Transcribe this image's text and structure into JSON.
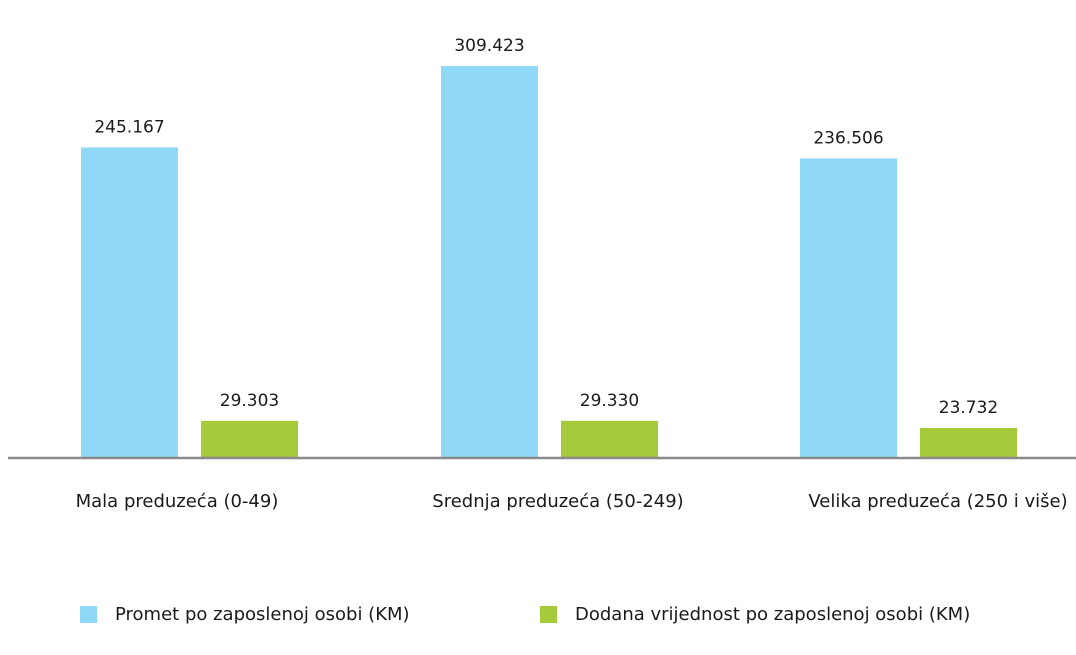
{
  "chart_data": {
    "type": "bar",
    "categories": [
      "Mala preduzeća (0-49)",
      "Srednja preduzeća (50-249)",
      "Velika preduzeća (250 i više)"
    ],
    "series": [
      {
        "name": "Promet po zaposlenoj osobi (KM)",
        "values": [
          245167,
          309423,
          236506
        ],
        "labels": [
          "245.167",
          "309.423",
          "236.506"
        ],
        "color": "#8fd8f7"
      },
      {
        "name": "Dodana vrijednost po zaposlenoj osobi (KM)",
        "values": [
          29303,
          29330,
          23732
        ],
        "labels": [
          "29.303",
          "29.330",
          "23.732"
        ],
        "color": "#a5cb3a"
      }
    ],
    "ylim": [
      0,
      330000
    ],
    "grid": false,
    "legend": "bottom",
    "axis_color": "#8a8a8a"
  }
}
